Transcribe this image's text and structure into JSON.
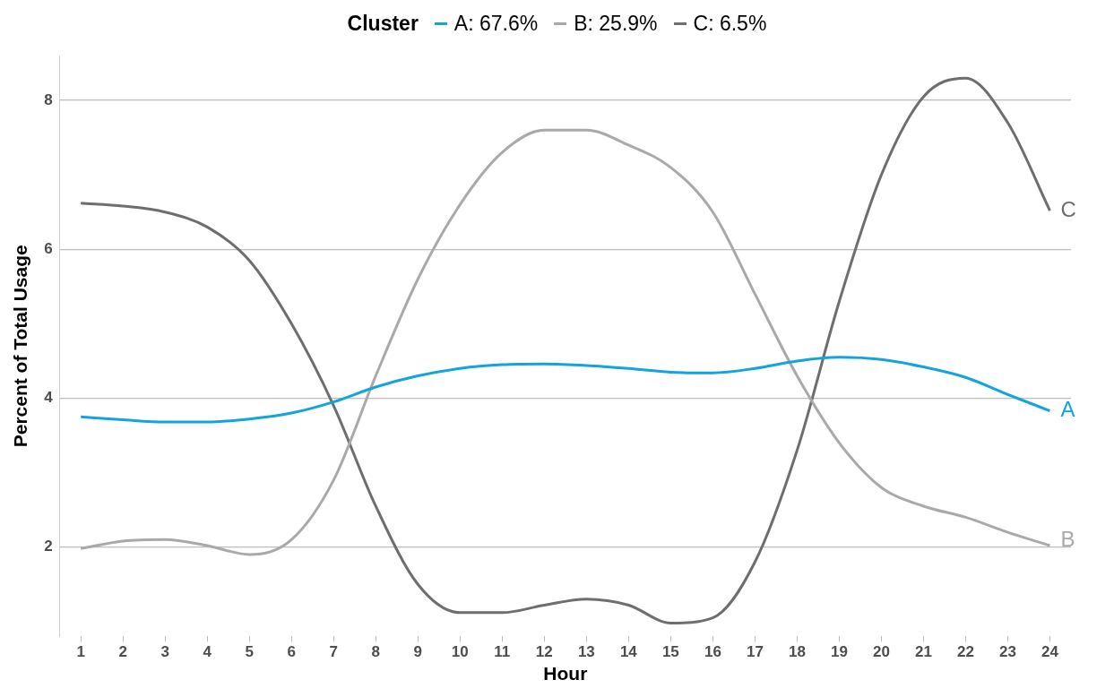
{
  "chart_data": {
    "type": "line",
    "xlabel": "Hour",
    "ylabel": "Percent of Total Usage",
    "legend_title": "Cluster",
    "legend": "top",
    "grid": "y",
    "x": [
      1,
      2,
      3,
      4,
      5,
      6,
      7,
      8,
      9,
      10,
      11,
      12,
      13,
      14,
      15,
      16,
      17,
      18,
      19,
      20,
      21,
      22,
      23,
      24
    ],
    "xlim": [
      0.5,
      24.5
    ],
    "xticks": [
      1,
      2,
      3,
      4,
      5,
      6,
      7,
      8,
      9,
      10,
      11,
      12,
      13,
      14,
      15,
      16,
      17,
      18,
      19,
      20,
      21,
      22,
      23,
      24
    ],
    "ylim": [
      0.8,
      8.6
    ],
    "yticks": [
      2,
      4,
      6,
      8
    ],
    "series": [
      {
        "name": "A: 67.6%",
        "color": "#13a3de",
        "values": [
          3.75,
          3.71,
          3.68,
          3.68,
          3.72,
          3.8,
          3.95,
          4.15,
          4.3,
          4.4,
          4.45,
          4.46,
          4.44,
          4.4,
          4.35,
          4.34,
          4.4,
          4.5,
          4.55,
          4.52,
          4.42,
          4.28,
          4.05,
          3.83
        ]
      },
      {
        "name": "B: 25.9%",
        "color": "#a9a9a9",
        "values": [
          1.98,
          2.08,
          2.1,
          2.02,
          1.9,
          2.1,
          2.9,
          4.3,
          5.6,
          6.6,
          7.3,
          7.6,
          7.6,
          7.4,
          7.1,
          6.5,
          5.4,
          4.3,
          3.4,
          2.8,
          2.55,
          2.4,
          2.2,
          2.02
        ]
      },
      {
        "name": "C: 6.5%",
        "color": "#6e6e6e",
        "values": [
          6.62,
          6.58,
          6.5,
          6.3,
          5.85,
          5.0,
          3.9,
          2.55,
          1.5,
          1.12,
          1.12,
          1.22,
          1.3,
          1.22,
          0.98,
          1.05,
          1.8,
          3.3,
          5.3,
          7.0,
          8.05,
          8.3,
          7.7,
          6.52
        ]
      }
    ],
    "annotations": [
      "A",
      "B",
      "C"
    ]
  }
}
